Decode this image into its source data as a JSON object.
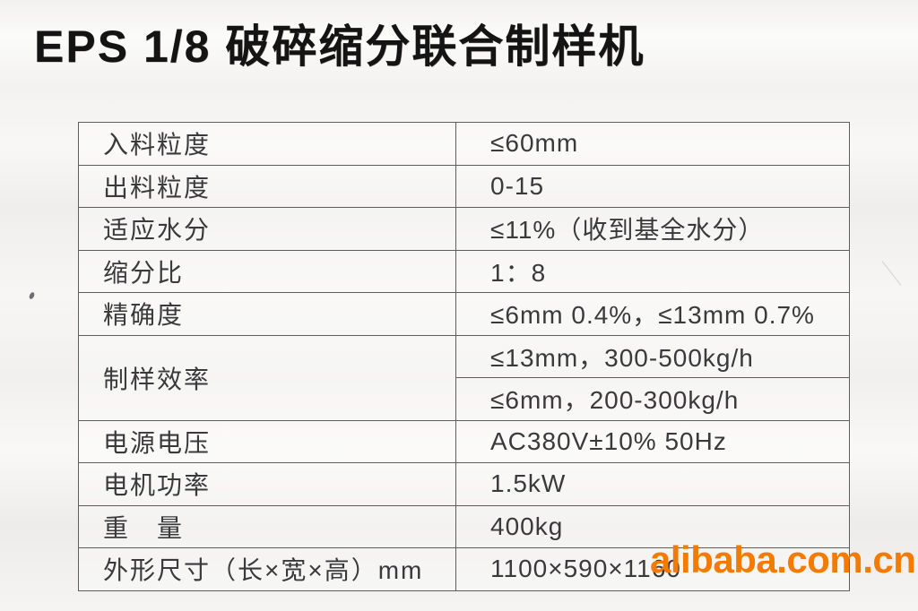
{
  "page": {
    "title": "EPS 1/8 破碎缩分联合制样机"
  },
  "spec_table": {
    "rows": [
      {
        "label": "入料粒度",
        "value": "≤60mm"
      },
      {
        "label": "出料粒度",
        "value": "0-15"
      },
      {
        "label": "适应水分",
        "value": "≤11%（收到基全水分）"
      },
      {
        "label": "缩分比",
        "value": "1：8"
      },
      {
        "label": "精确度",
        "value": "≤6mm 0.4%，≤13mm 0.7%"
      },
      {
        "label": "制样效率",
        "values": [
          "≤13mm，300-500kg/h",
          "≤6mm，200-300kg/h"
        ]
      },
      {
        "label": "电源电压",
        "value": "AC380V±10%  50Hz"
      },
      {
        "label": "电机功率",
        "value": "1.5kW"
      },
      {
        "label": "重　量",
        "value": "400kg"
      },
      {
        "label": "外形尺寸（长×宽×高）mm",
        "value": "1100×590×1160"
      }
    ]
  },
  "watermark": {
    "text": "alibaba.com.cn",
    "color": "#f47a00"
  }
}
